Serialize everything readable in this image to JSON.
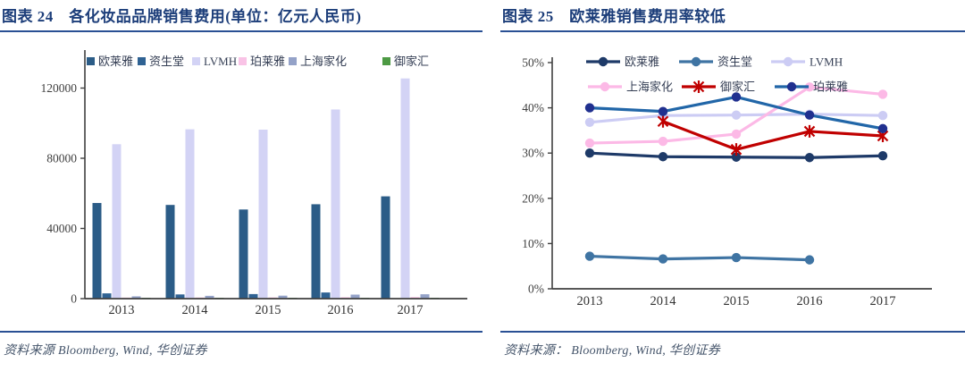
{
  "chart_data": [
    {
      "type": "bar",
      "title": "图表 24　各化妆品品牌销售费用(单位：亿元人民币)",
      "source": "资料来源 Bloomberg, Wind, 华创证券",
      "categories": [
        "2013",
        "2014",
        "2015",
        "2016",
        "2017"
      ],
      "series": [
        {
          "name": "欧莱雅",
          "color": "#2b5c87",
          "values": [
            54500,
            53400,
            50800,
            53800,
            58300
          ]
        },
        {
          "name": "资生堂",
          "color": "#2f6293",
          "values": [
            3000,
            2400,
            2600,
            3500,
            null
          ]
        },
        {
          "name": "LVMH",
          "color": "#d3d3f5",
          "values": [
            88000,
            96500,
            96300,
            107800,
            125500
          ]
        },
        {
          "name": "珀莱雅",
          "color": "#f9c3e6",
          "values": [
            600,
            650,
            700,
            800,
            900
          ]
        },
        {
          "name": "上海家化",
          "color": "#94a2c8",
          "values": [
            1300,
            1600,
            1700,
            2300,
            2500
          ]
        },
        {
          "name": "御家汇",
          "color": "#4d9a44",
          "values": [
            120,
            150,
            200,
            280,
            350
          ]
        }
      ],
      "ylim": [
        0,
        140000
      ],
      "yticks": [
        0,
        40000,
        80000,
        120000
      ],
      "ytick_labels": [
        "0",
        "40000",
        "80000",
        "120000"
      ],
      "legend_position": "top",
      "grid": false,
      "xlabel": "",
      "ylabel": ""
    },
    {
      "type": "line",
      "title": "图表 25　欧莱雅销售费用率较低",
      "source": "资料来源： Bloomberg, Wind, 华创证券",
      "categories": [
        "2013",
        "2014",
        "2015",
        "2016",
        "2017"
      ],
      "series": [
        {
          "name": "欧莱雅",
          "color": "#1e3a68",
          "marker": "circle",
          "marker_color": "#1e3a68",
          "values": [
            30.0,
            29.2,
            29.1,
            29.0,
            29.4
          ]
        },
        {
          "name": "资生堂",
          "color": "#3f74a3",
          "marker": "circle",
          "marker_color": "#3f74a3",
          "values": [
            7.2,
            6.6,
            6.9,
            6.4,
            null
          ]
        },
        {
          "name": "LVMH",
          "color": "#ccccf4",
          "marker": "circle",
          "marker_color": "#ccccf4",
          "values": [
            36.8,
            38.3,
            38.4,
            38.6,
            38.3
          ]
        },
        {
          "name": "上海家化",
          "color": "#fcb9e6",
          "marker": "circle",
          "marker_color": "#fcb9e6",
          "values": [
            32.2,
            32.6,
            34.2,
            44.6,
            43.0
          ]
        },
        {
          "name": "御家汇",
          "color": "#c00000",
          "marker": "x",
          "marker_color": "#c00000",
          "values": [
            null,
            37.0,
            30.8,
            34.8,
            33.8
          ]
        },
        {
          "name": "珀莱雅",
          "color": "#2166a8",
          "marker": "circle",
          "marker_color": "#20308f",
          "values": [
            40.0,
            39.2,
            42.4,
            38.4,
            35.4
          ]
        }
      ],
      "ylim": [
        0,
        50
      ],
      "yticks": [
        0,
        10,
        20,
        30,
        40,
        50
      ],
      "ytick_labels": [
        "0%",
        "10%",
        "20%",
        "30%",
        "40%",
        "50%"
      ],
      "unit": "%",
      "legend_position": "top",
      "grid": false,
      "xlabel": "",
      "ylabel": ""
    }
  ]
}
